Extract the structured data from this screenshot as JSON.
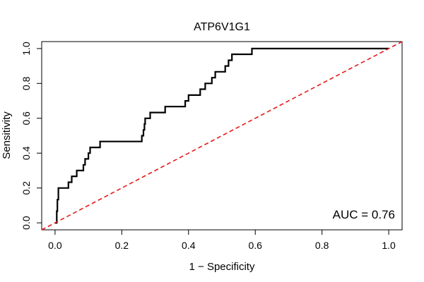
{
  "chart_data": {
    "type": "line",
    "title": "ATP6V1G1",
    "xlabel": "1 − Specificity",
    "ylabel": "Sensitivity",
    "xlim": [
      -0.04,
      1.04
    ],
    "ylim": [
      -0.04,
      1.04
    ],
    "x_ticks": [
      0.0,
      0.2,
      0.4,
      0.6,
      0.8,
      1.0
    ],
    "x_tick_labels": [
      "0.0",
      "0.2",
      "0.4",
      "0.6",
      "0.8",
      "1.0"
    ],
    "y_ticks": [
      0.0,
      0.2,
      0.4,
      0.6,
      0.8,
      1.0
    ],
    "y_tick_labels": [
      "0.0",
      "0.2",
      "0.4",
      "0.6",
      "0.8",
      "1.0"
    ],
    "grid": false,
    "annotation": "AUC = 0.76",
    "series": [
      {
        "type": "step",
        "color": "#000000",
        "points": [
          [
            0.0,
            0.0
          ],
          [
            0.005,
            0.0
          ],
          [
            0.005,
            0.067
          ],
          [
            0.007,
            0.067
          ],
          [
            0.007,
            0.133
          ],
          [
            0.01,
            0.133
          ],
          [
            0.01,
            0.2
          ],
          [
            0.04,
            0.2
          ],
          [
            0.04,
            0.233
          ],
          [
            0.05,
            0.233
          ],
          [
            0.05,
            0.267
          ],
          [
            0.065,
            0.267
          ],
          [
            0.065,
            0.3
          ],
          [
            0.085,
            0.3
          ],
          [
            0.085,
            0.333
          ],
          [
            0.09,
            0.333
          ],
          [
            0.09,
            0.367
          ],
          [
            0.1,
            0.367
          ],
          [
            0.1,
            0.4
          ],
          [
            0.105,
            0.4
          ],
          [
            0.105,
            0.433
          ],
          [
            0.135,
            0.433
          ],
          [
            0.135,
            0.467
          ],
          [
            0.26,
            0.467
          ],
          [
            0.26,
            0.5
          ],
          [
            0.265,
            0.5
          ],
          [
            0.265,
            0.533
          ],
          [
            0.268,
            0.533
          ],
          [
            0.268,
            0.567
          ],
          [
            0.27,
            0.567
          ],
          [
            0.27,
            0.6
          ],
          [
            0.285,
            0.6
          ],
          [
            0.285,
            0.633
          ],
          [
            0.33,
            0.633
          ],
          [
            0.33,
            0.667
          ],
          [
            0.39,
            0.667
          ],
          [
            0.39,
            0.7
          ],
          [
            0.4,
            0.7
          ],
          [
            0.4,
            0.733
          ],
          [
            0.435,
            0.733
          ],
          [
            0.435,
            0.767
          ],
          [
            0.45,
            0.767
          ],
          [
            0.45,
            0.8
          ],
          [
            0.47,
            0.8
          ],
          [
            0.47,
            0.833
          ],
          [
            0.48,
            0.833
          ],
          [
            0.48,
            0.867
          ],
          [
            0.51,
            0.867
          ],
          [
            0.51,
            0.9
          ],
          [
            0.52,
            0.9
          ],
          [
            0.52,
            0.933
          ],
          [
            0.53,
            0.933
          ],
          [
            0.53,
            0.967
          ],
          [
            0.59,
            0.967
          ],
          [
            0.59,
            1.0
          ],
          [
            1.0,
            1.0
          ]
        ]
      },
      {
        "type": "reference",
        "color": "#e8191a",
        "dashed": true,
        "points": [
          [
            -0.04,
            -0.04
          ],
          [
            1.04,
            1.04
          ]
        ]
      }
    ]
  }
}
